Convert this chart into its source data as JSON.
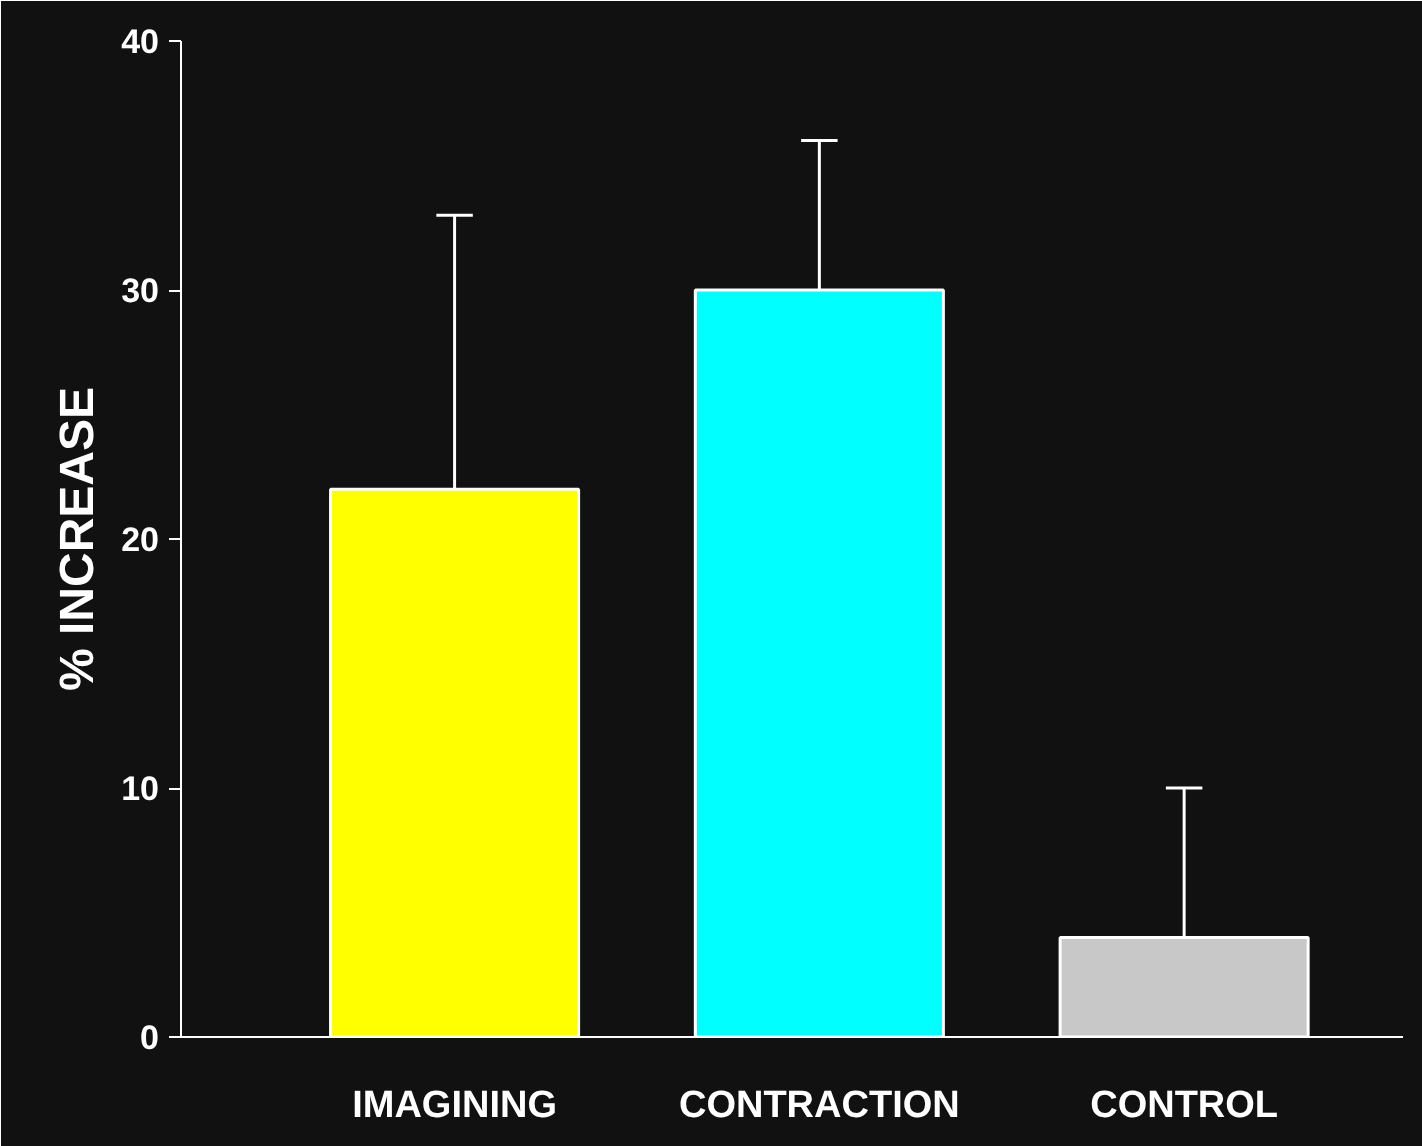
{
  "chart_data": {
    "type": "bar",
    "ylabel": "% INCREASE",
    "categories": [
      "IMAGINING",
      "CONTRACTION",
      "CONTROL"
    ],
    "values": [
      22,
      30,
      4
    ],
    "colors": [
      "#ffff00",
      "#00ffff",
      "#c8c8c8"
    ],
    "errors": [
      [
        22,
        33
      ],
      [
        30,
        36
      ],
      [
        4,
        10
      ]
    ],
    "ylim": [
      0,
      40
    ],
    "yticks": [
      0,
      10,
      20,
      30,
      40
    ],
    "grid": false
  }
}
